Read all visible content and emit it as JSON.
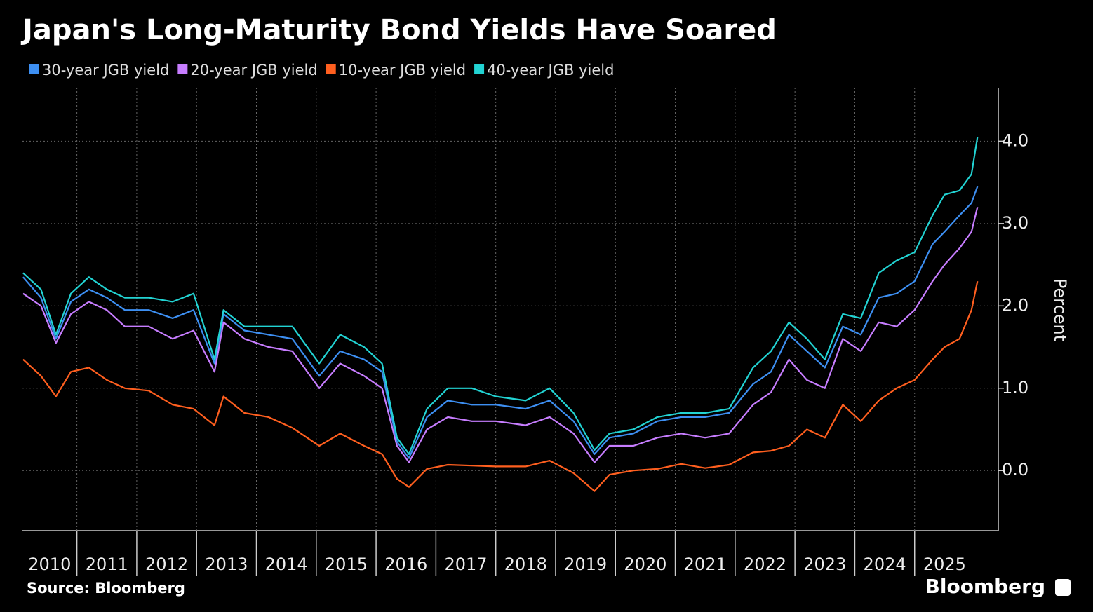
{
  "chart_data": {
    "type": "line",
    "title": "Japan's Long-Maturity Bond Yields Have Soared",
    "y_label": "Percent",
    "source": "Source: Bloomberg",
    "brand": "Bloomberg",
    "grid": true,
    "legend_position": "top-left",
    "x": [
      2010.1,
      2010.4,
      2010.65,
      2010.9,
      2011.2,
      2011.5,
      2011.8,
      2012.2,
      2012.6,
      2012.95,
      2013.3,
      2013.45,
      2013.8,
      2014.2,
      2014.6,
      2015.05,
      2015.4,
      2015.8,
      2016.1,
      2016.35,
      2016.55,
      2016.85,
      2017.2,
      2017.6,
      2018.0,
      2018.5,
      2018.9,
      2019.3,
      2019.65,
      2019.9,
      2020.3,
      2020.7,
      2021.1,
      2021.5,
      2021.9,
      2022.3,
      2022.6,
      2022.9,
      2023.2,
      2023.5,
      2023.8,
      2024.1,
      2024.4,
      2024.7,
      2025.0,
      2025.3,
      2025.5,
      2025.75,
      2025.95,
      2026.05
    ],
    "xlim": [
      2010.09,
      2026.07
    ],
    "xticks": [
      2010,
      2011,
      2012,
      2013,
      2014,
      2015,
      2016,
      2017,
      2018,
      2019,
      2020,
      2021,
      2022,
      2023,
      2024,
      2025
    ],
    "ylim": [
      -0.73,
      4.65
    ],
    "yticks": [
      {
        "value": 0,
        "label": "0.0"
      },
      {
        "value": 1,
        "label": "1.0"
      },
      {
        "value": 2,
        "label": "2.0"
      },
      {
        "value": 3,
        "label": "3.0"
      },
      {
        "value": 4,
        "label": "4.0"
      }
    ],
    "series": [
      {
        "name": "30-year JGB yield",
        "color": "#3d8ff2",
        "values": [
          2.35,
          2.1,
          1.6,
          2.05,
          2.2,
          2.1,
          1.95,
          1.95,
          1.85,
          1.95,
          1.3,
          1.9,
          1.7,
          1.65,
          1.6,
          1.15,
          1.45,
          1.35,
          1.2,
          0.35,
          0.15,
          0.65,
          0.85,
          0.8,
          0.8,
          0.75,
          0.85,
          0.6,
          0.2,
          0.4,
          0.45,
          0.6,
          0.65,
          0.65,
          0.7,
          1.05,
          1.2,
          1.65,
          1.45,
          1.25,
          1.75,
          1.65,
          2.1,
          2.15,
          2.3,
          2.75,
          2.9,
          3.1,
          3.25,
          3.45
        ]
      },
      {
        "name": "20-year JGB yield",
        "color": "#c77dff",
        "values": [
          2.15,
          2.0,
          1.55,
          1.9,
          2.05,
          1.95,
          1.75,
          1.75,
          1.6,
          1.7,
          1.2,
          1.8,
          1.6,
          1.5,
          1.45,
          1.0,
          1.3,
          1.15,
          1.0,
          0.3,
          0.1,
          0.5,
          0.65,
          0.6,
          0.6,
          0.55,
          0.65,
          0.45,
          0.1,
          0.3,
          0.3,
          0.4,
          0.45,
          0.4,
          0.45,
          0.8,
          0.95,
          1.35,
          1.1,
          1.0,
          1.6,
          1.45,
          1.8,
          1.75,
          1.95,
          2.3,
          2.5,
          2.7,
          2.9,
          3.2
        ]
      },
      {
        "name": "10-year JGB yield",
        "color": "#ff5f1f",
        "values": [
          1.35,
          1.15,
          0.9,
          1.2,
          1.25,
          1.1,
          1.0,
          0.97,
          0.8,
          0.75,
          0.55,
          0.9,
          0.7,
          0.65,
          0.52,
          0.3,
          0.45,
          0.3,
          0.2,
          -0.1,
          -0.2,
          0.02,
          0.07,
          0.06,
          0.05,
          0.05,
          0.12,
          -0.03,
          -0.25,
          -0.05,
          0.0,
          0.02,
          0.08,
          0.03,
          0.07,
          0.22,
          0.24,
          0.3,
          0.5,
          0.4,
          0.8,
          0.6,
          0.85,
          1.0,
          1.1,
          1.35,
          1.5,
          1.6,
          1.95,
          2.3
        ]
      },
      {
        "name": "40-year JGB yield",
        "color": "#22d3d3",
        "values": [
          2.4,
          2.2,
          1.65,
          2.15,
          2.35,
          2.2,
          2.1,
          2.1,
          2.05,
          2.15,
          1.35,
          1.95,
          1.75,
          1.75,
          1.75,
          1.3,
          1.65,
          1.5,
          1.3,
          0.4,
          0.2,
          0.75,
          1.0,
          1.0,
          0.9,
          0.85,
          1.0,
          0.7,
          0.25,
          0.45,
          0.5,
          0.65,
          0.7,
          0.7,
          0.75,
          1.25,
          1.45,
          1.8,
          1.6,
          1.35,
          1.9,
          1.85,
          2.4,
          2.55,
          2.65,
          3.1,
          3.35,
          3.4,
          3.6,
          4.05
        ]
      }
    ]
  }
}
